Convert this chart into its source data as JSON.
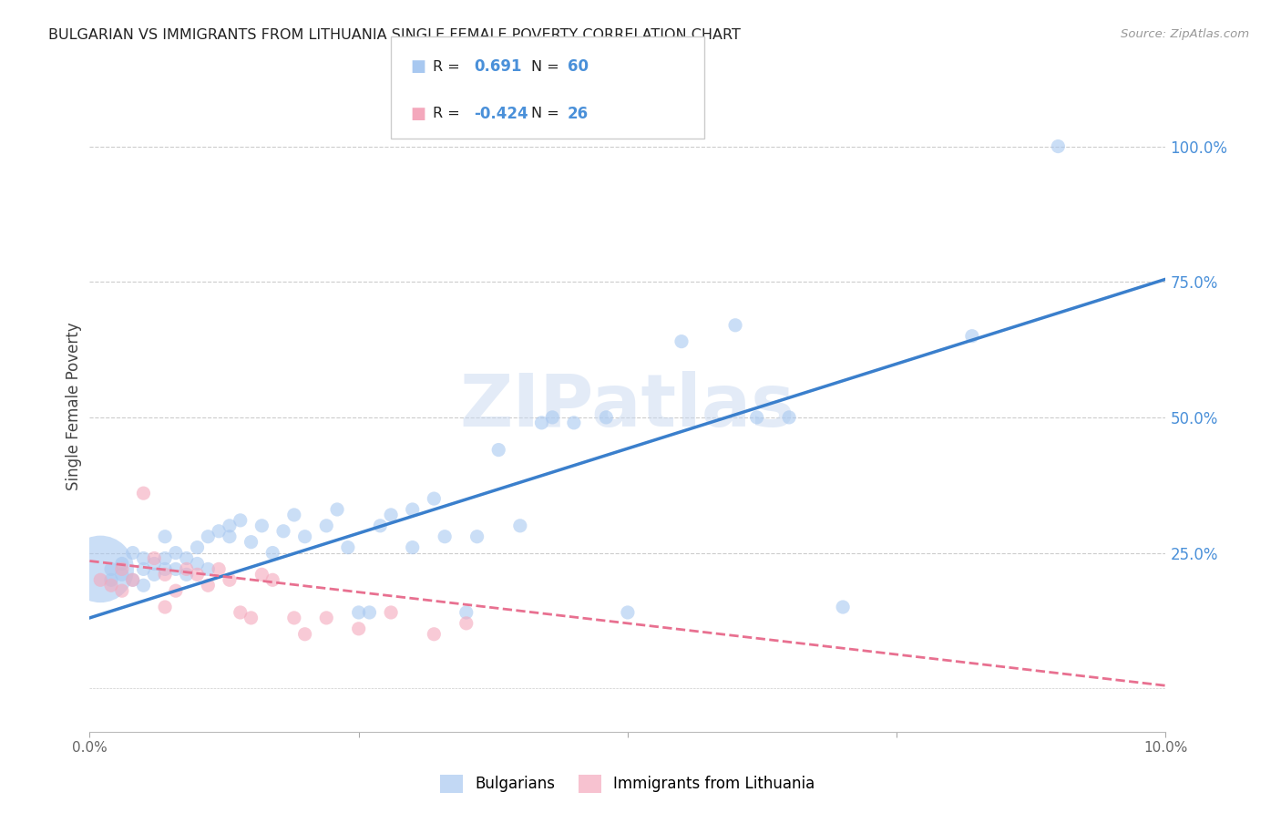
{
  "title": "BULGARIAN VS IMMIGRANTS FROM LITHUANIA SINGLE FEMALE POVERTY CORRELATION CHART",
  "source": "Source: ZipAtlas.com",
  "ylabel": "Single Female Poverty",
  "right_ytick_labels": [
    "100.0%",
    "75.0%",
    "50.0%",
    "25.0%"
  ],
  "right_ytick_values": [
    1.0,
    0.75,
    0.5,
    0.25
  ],
  "xlim": [
    0.0,
    0.1
  ],
  "ylim": [
    -0.08,
    1.12
  ],
  "blue_R": "0.691",
  "blue_N": "60",
  "pink_R": "-0.424",
  "pink_N": "26",
  "legend_label_blue": "Bulgarians",
  "legend_label_pink": "Immigrants from Lithuania",
  "blue_color": "#A8C8F0",
  "pink_color": "#F4A8BC",
  "trendline_blue_color": "#3A7FCC",
  "trendline_pink_color": "#E87090",
  "watermark_text": "ZIPatlas",
  "watermark_color": "#C8D8F0",
  "background_color": "#FFFFFF",
  "grid_color": "#CCCCCC",
  "title_color": "#222222",
  "source_color": "#999999",
  "right_axis_color": "#4A90D9",
  "legend_text_color": "#222222",
  "legend_value_color": "#4A90D9",
  "blue_trend_x0": 0.0,
  "blue_trend_y0": 0.13,
  "blue_trend_x1": 0.1,
  "blue_trend_y1": 0.755,
  "pink_trend_x0": 0.0,
  "pink_trend_y0": 0.235,
  "pink_trend_x1": 0.1,
  "pink_trend_y1": 0.005,
  "blue_scatter_x": [
    0.001,
    0.002,
    0.002,
    0.003,
    0.003,
    0.004,
    0.004,
    0.005,
    0.005,
    0.005,
    0.006,
    0.006,
    0.007,
    0.007,
    0.007,
    0.008,
    0.008,
    0.009,
    0.009,
    0.01,
    0.01,
    0.011,
    0.011,
    0.012,
    0.013,
    0.013,
    0.014,
    0.015,
    0.016,
    0.017,
    0.018,
    0.019,
    0.02,
    0.022,
    0.023,
    0.024,
    0.025,
    0.026,
    0.027,
    0.028,
    0.03,
    0.03,
    0.032,
    0.033,
    0.035,
    0.036,
    0.038,
    0.04,
    0.042,
    0.043,
    0.045,
    0.048,
    0.05,
    0.055,
    0.06,
    0.062,
    0.065,
    0.07,
    0.082,
    0.09
  ],
  "blue_scatter_y": [
    0.22,
    0.2,
    0.22,
    0.21,
    0.23,
    0.2,
    0.25,
    0.19,
    0.22,
    0.24,
    0.21,
    0.23,
    0.22,
    0.24,
    0.28,
    0.22,
    0.25,
    0.21,
    0.24,
    0.26,
    0.23,
    0.28,
    0.22,
    0.29,
    0.28,
    0.3,
    0.31,
    0.27,
    0.3,
    0.25,
    0.29,
    0.32,
    0.28,
    0.3,
    0.33,
    0.26,
    0.14,
    0.14,
    0.3,
    0.32,
    0.33,
    0.26,
    0.35,
    0.28,
    0.14,
    0.28,
    0.44,
    0.3,
    0.49,
    0.5,
    0.49,
    0.5,
    0.14,
    0.64,
    0.67,
    0.5,
    0.5,
    0.15,
    0.65,
    1.0
  ],
  "blue_scatter_sizes_uniform": 120,
  "blue_scatter_size_large": 2800,
  "pink_scatter_x": [
    0.001,
    0.002,
    0.003,
    0.003,
    0.004,
    0.005,
    0.006,
    0.007,
    0.007,
    0.008,
    0.009,
    0.01,
    0.011,
    0.012,
    0.013,
    0.014,
    0.015,
    0.016,
    0.017,
    0.019,
    0.02,
    0.022,
    0.025,
    0.028,
    0.032,
    0.035
  ],
  "pink_scatter_y": [
    0.2,
    0.19,
    0.22,
    0.18,
    0.2,
    0.36,
    0.24,
    0.15,
    0.21,
    0.18,
    0.22,
    0.21,
    0.19,
    0.22,
    0.2,
    0.14,
    0.13,
    0.21,
    0.2,
    0.13,
    0.1,
    0.13,
    0.11,
    0.14,
    0.1,
    0.12
  ],
  "pink_scatter_sizes_uniform": 120
}
